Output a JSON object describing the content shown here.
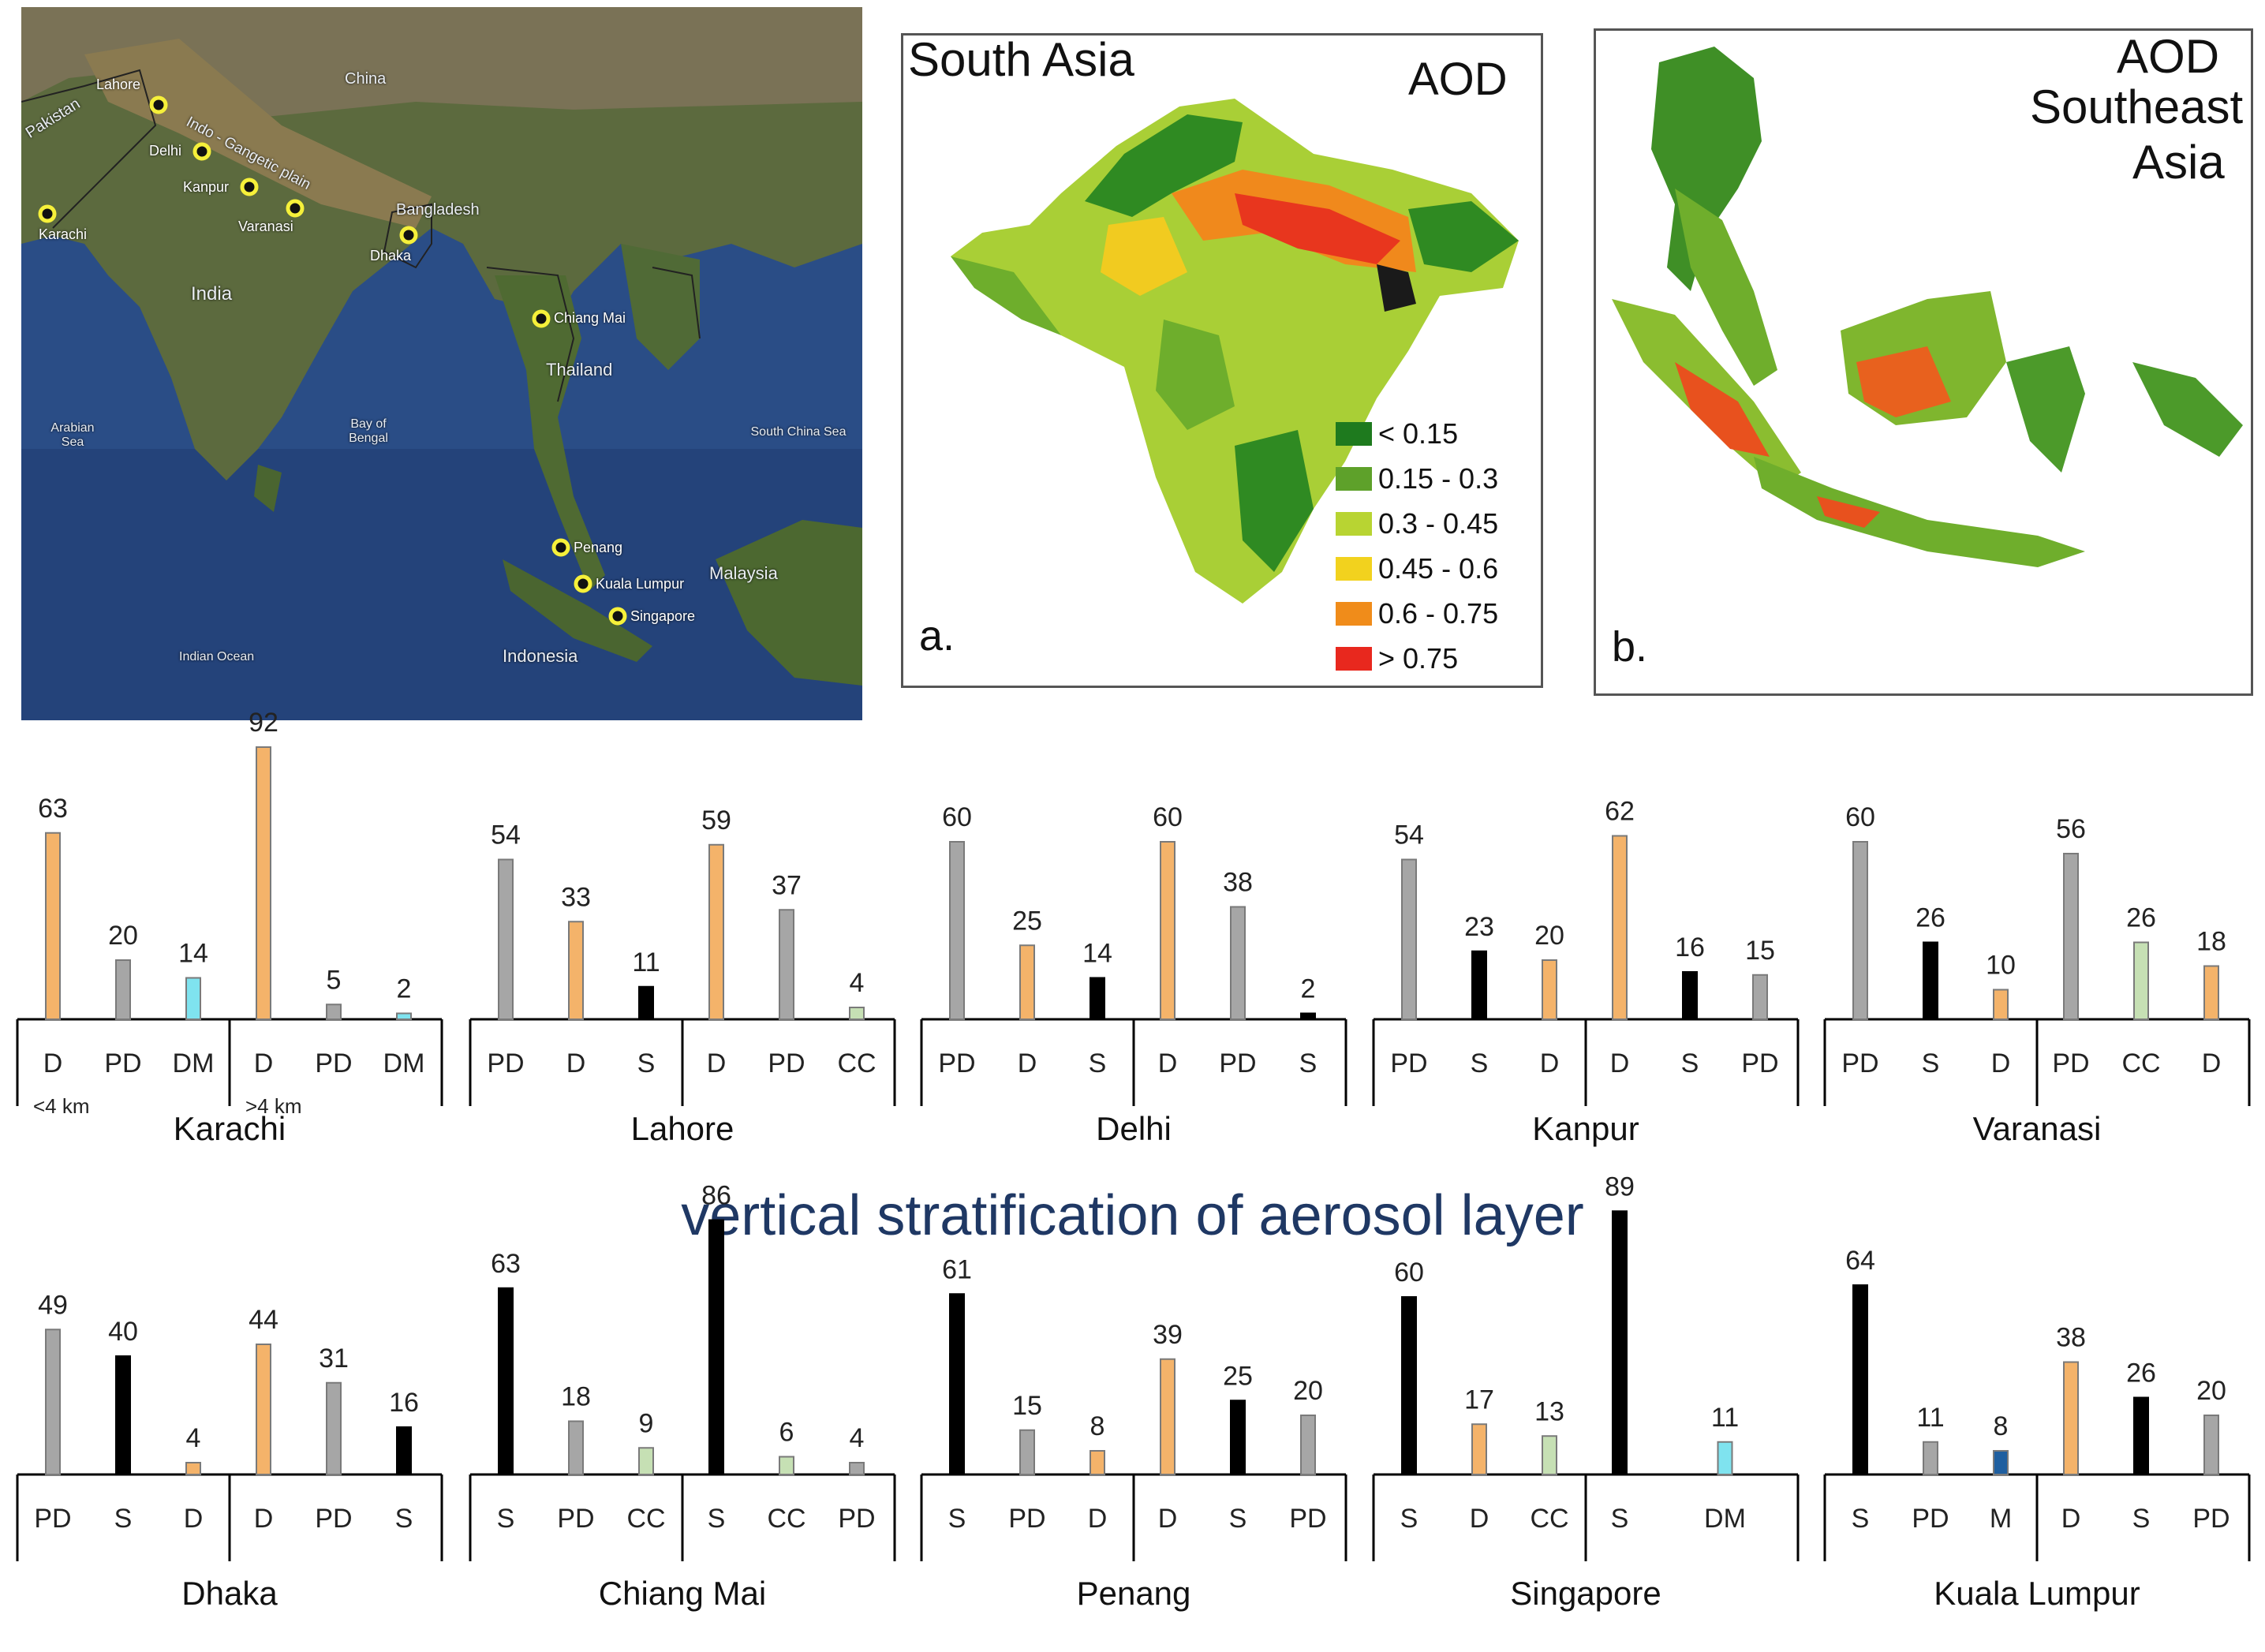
{
  "satellite_map": {
    "countries": [
      "Pakistan",
      "China",
      "India",
      "Bangladesh",
      "Thailand",
      "Malaysia",
      "Indonesia"
    ],
    "regions": [
      "Indo - Gangetic plain",
      "Arabian Sea",
      "Bay of Bengal",
      "South China Sea",
      "Indian Ocean"
    ],
    "cities": [
      "Lahore",
      "Delhi",
      "Kanpur",
      "Varanasi",
      "Karachi",
      "Dhaka",
      "Chiang Mai",
      "Penang",
      "Kuala Lumpur",
      "Singapore"
    ]
  },
  "map_a": {
    "region_title": "South Asia",
    "variable": "AOD",
    "panel_label": "a.",
    "legend": [
      {
        "label": "< 0.15",
        "color": "#1e7a1e"
      },
      {
        "label": "0.15 - 0.3",
        "color": "#5ea12a"
      },
      {
        "label": "0.3 - 0.45",
        "color": "#b8d432"
      },
      {
        "label": "0.45 - 0.6",
        "color": "#f2d21e"
      },
      {
        "label": "0.6 - 0.75",
        "color": "#f08c1a"
      },
      {
        "label": "> 0.75",
        "color": "#e8281e"
      }
    ]
  },
  "map_b": {
    "variable": "AOD",
    "region_title_line1": "Southeast",
    "region_title_line2": "Asia",
    "panel_label": "b."
  },
  "section_title": "vertical stratification of aerosol layer",
  "colors": {
    "D": "#f4b36a",
    "PD": "#a6a6a6",
    "DM": "#7fe3ef",
    "S": "#000000",
    "CC": "#c6e0b4",
    "M": "#1f5fa0"
  },
  "chart_data": [
    {
      "type": "bar",
      "city": "Karachi",
      "categories": [
        "D",
        "PD",
        "DM",
        "D",
        "PD",
        "DM"
      ],
      "values": [
        63,
        20,
        14,
        92,
        5,
        2
      ],
      "altitude_labels": [
        "<4 km",
        ">4 km"
      ]
    },
    {
      "type": "bar",
      "city": "Lahore",
      "categories": [
        "PD",
        "D",
        "S",
        "D",
        "PD",
        "CC"
      ],
      "values": [
        54,
        33,
        11,
        59,
        37,
        4
      ]
    },
    {
      "type": "bar",
      "city": "Delhi",
      "categories": [
        "PD",
        "D",
        "S",
        "D",
        "PD",
        "S"
      ],
      "values": [
        60,
        25,
        14,
        60,
        38,
        2
      ]
    },
    {
      "type": "bar",
      "city": "Kanpur",
      "categories": [
        "PD",
        "S",
        "D",
        "D",
        "S",
        "PD"
      ],
      "values": [
        54,
        23,
        20,
        62,
        16,
        15
      ]
    },
    {
      "type": "bar",
      "city": "Varanasi",
      "categories": [
        "PD",
        "S",
        "D",
        "PD",
        "CC",
        "D"
      ],
      "values": [
        60,
        26,
        10,
        56,
        26,
        18
      ]
    },
    {
      "type": "bar",
      "city": "Dhaka",
      "categories": [
        "PD",
        "S",
        "D",
        "D",
        "PD",
        "S"
      ],
      "values": [
        49,
        40,
        4,
        44,
        31,
        16
      ]
    },
    {
      "type": "bar",
      "city": "Chiang Mai",
      "categories": [
        "S",
        "PD",
        "CC",
        "S",
        "CC",
        "PD"
      ],
      "values": [
        63,
        18,
        9,
        86,
        6,
        4
      ]
    },
    {
      "type": "bar",
      "city": "Penang",
      "categories": [
        "S",
        "PD",
        "D",
        "D",
        "S",
        "PD"
      ],
      "values": [
        61,
        15,
        8,
        39,
        25,
        20
      ]
    },
    {
      "type": "bar",
      "city": "Singapore",
      "categories": [
        "S",
        "D",
        "CC",
        "S",
        "DM"
      ],
      "values": [
        60,
        17,
        13,
        89,
        11
      ],
      "slots": [
        0,
        1,
        2,
        3,
        4.5
      ]
    },
    {
      "type": "bar",
      "city": "Kuala Lumpur",
      "categories": [
        "S",
        "PD",
        "M",
        "D",
        "S",
        "PD"
      ],
      "values": [
        64,
        11,
        8,
        38,
        26,
        20
      ]
    }
  ]
}
